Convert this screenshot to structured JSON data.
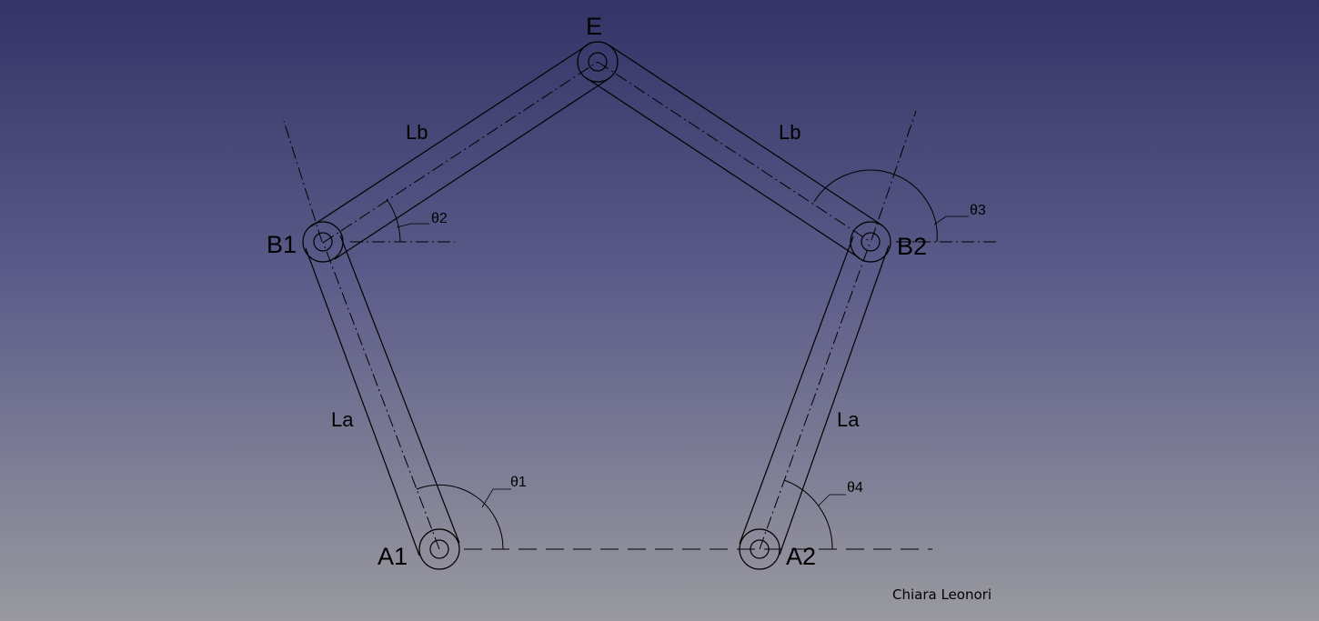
{
  "points": {
    "A1": "A1",
    "A2": "A2",
    "B1": "B1",
    "B2": "B2",
    "E": "E"
  },
  "links": {
    "la_left": "La",
    "la_right": "La",
    "lb_left": "Lb",
    "lb_right": "Lb"
  },
  "angles": {
    "theta1": "θ1",
    "theta2": "θ2",
    "theta3": "θ3",
    "theta4": "θ4"
  },
  "author": "Chiara Leonori"
}
